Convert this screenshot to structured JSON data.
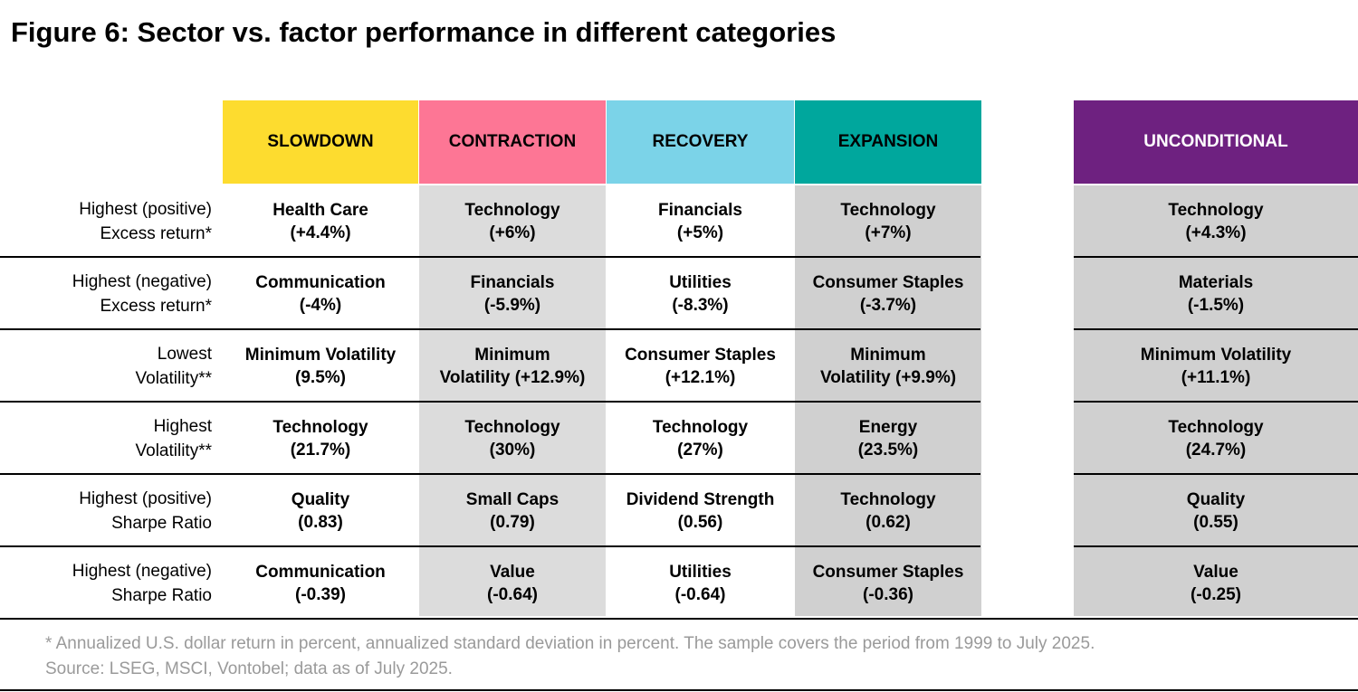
{
  "title": "Figure 6: Sector vs. factor performance in different categories",
  "columns": [
    {
      "label": "SLOWDOWN",
      "bg": "#FDDC2F",
      "color": "#000000"
    },
    {
      "label": "CONTRACTION",
      "bg": "#FD7695",
      "color": "#000000"
    },
    {
      "label": "RECOVERY",
      "bg": "#7BD3E8",
      "color": "#000000"
    },
    {
      "label": "EXPANSION",
      "bg": "#00A79D",
      "color": "#000000"
    },
    {
      "label": "UNCONDITIONAL",
      "bg": "#6E2180",
      "color": "#FFFFFF"
    }
  ],
  "rows": [
    {
      "label": [
        "Highest (positive)",
        "Excess return*"
      ],
      "cells": [
        [
          "Health Care",
          "(+4.4%)"
        ],
        [
          "Technology",
          "(+6%)"
        ],
        [
          "Financials",
          "(+5%)"
        ],
        [
          "Technology",
          "(+7%)"
        ],
        [
          "Technology",
          "(+4.3%)"
        ]
      ]
    },
    {
      "label": [
        "Highest (negative)",
        "Excess return*"
      ],
      "cells": [
        [
          "Communication",
          "(-4%)"
        ],
        [
          "Financials",
          "(-5.9%)"
        ],
        [
          "Utilities",
          "(-8.3%)"
        ],
        [
          "Consumer Staples",
          "(-3.7%)"
        ],
        [
          "Materials",
          "(-1.5%)"
        ]
      ]
    },
    {
      "label": [
        "Lowest",
        "Volatility**"
      ],
      "cells": [
        [
          "Minimum Volatility",
          "(9.5%)"
        ],
        [
          "Minimum",
          "Volatility (+12.9%)"
        ],
        [
          "Consumer Staples",
          "(+12.1%)"
        ],
        [
          "Minimum",
          "Volatility (+9.9%)"
        ],
        [
          "Minimum Volatility",
          "(+11.1%)"
        ]
      ]
    },
    {
      "label": [
        "Highest",
        "Volatility**"
      ],
      "cells": [
        [
          "Technology",
          "(21.7%)"
        ],
        [
          "Technology",
          "(30%)"
        ],
        [
          "Technology",
          "(27%)"
        ],
        [
          "Energy",
          "(23.5%)"
        ],
        [
          "Technology",
          "(24.7%)"
        ]
      ]
    },
    {
      "label": [
        "Highest (positive)",
        "Sharpe Ratio"
      ],
      "cells": [
        [
          "Quality",
          "(0.83)"
        ],
        [
          "Small Caps",
          "(0.79)"
        ],
        [
          "Dividend Strength",
          "(0.56)"
        ],
        [
          "Technology",
          "(0.62)"
        ],
        [
          "Quality",
          "(0.55)"
        ]
      ]
    },
    {
      "label": [
        "Highest (negative)",
        "Sharpe Ratio"
      ],
      "cells": [
        [
          "Communication",
          "(-0.39)"
        ],
        [
          "Value",
          "(-0.64)"
        ],
        [
          "Utilities",
          "(-0.64)"
        ],
        [
          "Consumer Staples",
          "(-0.36)"
        ],
        [
          "Value",
          "(-0.25)"
        ]
      ]
    }
  ],
  "footnote": [
    "* Annualized U.S. dollar return in percent, annualized standard deviation in percent. The sample covers the period from 1999 to July 2025.",
    "Source: LSEG, MSCI, Vontobel; data as of July 2025."
  ]
}
